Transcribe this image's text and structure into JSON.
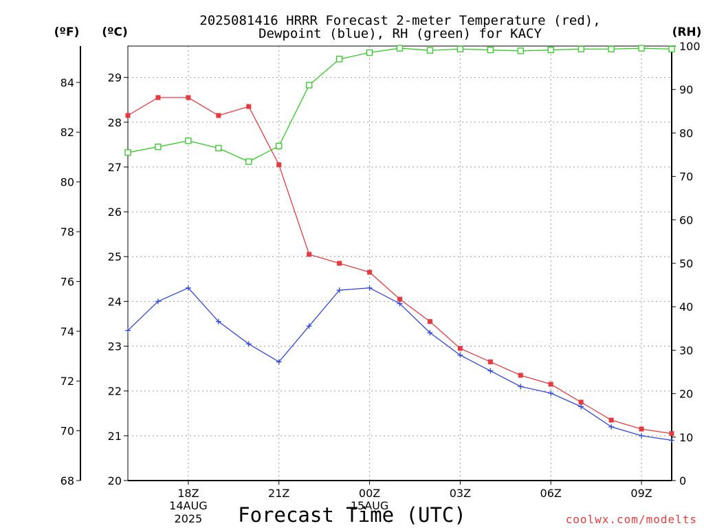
{
  "title_lines": [
    "2025081416 HRRR Forecast 2-meter Temperature (red),",
    "Dewpoint (blue), RH (green) for KACY"
  ],
  "units": {
    "fahrenheit": "(ºF)",
    "celsius": "(ºC)",
    "rh": "(RH)"
  },
  "xaxis_title": "Forecast Time (UTC)",
  "credit": "coolwx.com/modelts",
  "colors": {
    "temperature": "#e8393f",
    "dewpoint": "#2f46e0",
    "rh": "#2ecc21",
    "grid": "#9a9a9a",
    "axis": "#000000"
  },
  "chart_data": {
    "type": "line",
    "x": [
      "16Z",
      "17Z",
      "18Z",
      "19Z",
      "20Z",
      "21Z",
      "22Z",
      "23Z",
      "00Z",
      "01Z",
      "02Z",
      "03Z",
      "04Z",
      "05Z",
      "06Z",
      "07Z",
      "08Z",
      "09Z",
      "10Z"
    ],
    "xlim": [
      16,
      34
    ],
    "x_ticks": [
      {
        "hour": 18,
        "label": "18Z",
        "sub": [
          "14AUG",
          "2025"
        ]
      },
      {
        "hour": 21,
        "label": "21Z",
        "sub": []
      },
      {
        "hour": 24,
        "label": "00Z",
        "sub": [
          "15AUG"
        ]
      },
      {
        "hour": 27,
        "label": "03Z",
        "sub": []
      },
      {
        "hour": 30,
        "label": "06Z",
        "sub": []
      },
      {
        "hour": 33,
        "label": "09Z",
        "sub": []
      }
    ],
    "ylim_celsius": [
      20,
      29.7
    ],
    "yticks_celsius": [
      "20",
      "21",
      "22",
      "23",
      "24",
      "25",
      "26",
      "27",
      "28",
      "29"
    ],
    "yticks_fahrenheit": [
      "68",
      "70",
      "72",
      "74",
      "76",
      "78",
      "80",
      "82",
      "84"
    ],
    "ylim_rh": [
      0,
      100
    ],
    "yticks_rh": [
      "0",
      "10",
      "20",
      "30",
      "40",
      "50",
      "60",
      "70",
      "80",
      "90",
      "100"
    ],
    "grid": true,
    "series": [
      {
        "name": "Temperature",
        "axis": "celsius",
        "marker": "filled-square",
        "values": [
          28.15,
          28.55,
          28.55,
          28.15,
          28.35,
          27.05,
          25.05,
          24.85,
          24.65,
          24.05,
          23.55,
          22.95,
          22.65,
          22.35,
          22.15,
          21.75,
          21.35,
          21.15,
          21.05
        ]
      },
      {
        "name": "Dewpoint",
        "axis": "celsius",
        "marker": "plus",
        "values": [
          23.35,
          24.0,
          24.3,
          23.55,
          23.05,
          22.65,
          23.45,
          24.25,
          24.3,
          23.95,
          23.3,
          22.8,
          22.45,
          22.1,
          21.95,
          21.65,
          21.2,
          21.0,
          20.9
        ]
      },
      {
        "name": "RH",
        "axis": "rh",
        "marker": "open-square",
        "values": [
          75.5,
          76.8,
          78.2,
          76.5,
          73.4,
          77.0,
          91.0,
          97.0,
          98.5,
          99.5,
          99.0,
          99.3,
          99.1,
          98.9,
          99.1,
          99.3,
          99.3,
          99.5,
          99.3
        ]
      }
    ]
  }
}
